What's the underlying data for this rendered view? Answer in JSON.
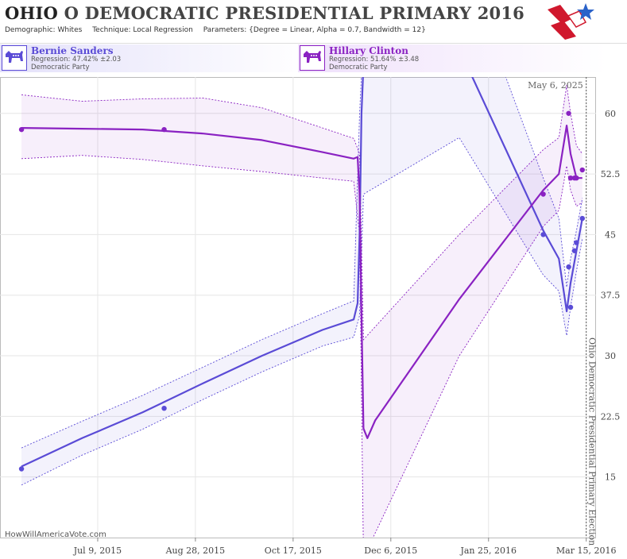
{
  "header": {
    "state": "OHIO",
    "title_rest": "O DEMOCRATIC PRESIDENTIAL PRIMARY 2016",
    "demographic_label": "Demographic:",
    "demographic": "Whites",
    "technique_label": "Technique:",
    "technique": "Local Regression",
    "parameters_label": "Parameters:",
    "parameters": "{Degree = Linear, Alpha = 0.7, Bandwidth = 12}"
  },
  "candidates": [
    {
      "name": "Bernie Sanders",
      "regression": "Regression: 47.42% ±2.03",
      "party": "Democratic Party",
      "color": "#5a4bd6",
      "icon": "donkey-icon"
    },
    {
      "name": "Hillary Clinton",
      "regression": "Regression: 51.64% ±3.48",
      "party": "Democratic Party",
      "color": "#8a22c2",
      "icon": "donkey-icon"
    }
  ],
  "footer": {
    "site": "HowWillAmericaVote.com"
  },
  "chart_data": {
    "type": "line",
    "x_axis": {
      "type": "date",
      "range": [
        "2015-05-20",
        "2016-03-20"
      ],
      "tick_labels": [
        "Jul 9, 2015",
        "Aug 28, 2015",
        "Oct 17, 2015",
        "Dec 6, 2015",
        "Jan 25, 2016",
        "Mar 15, 2016"
      ],
      "ticks": [
        "2015-07-09",
        "2015-08-28",
        "2015-10-17",
        "2015-12-06",
        "2016-01-25",
        "2016-03-15"
      ]
    },
    "y_axis": {
      "range": [
        7.5,
        64.5
      ],
      "ticks": [
        15,
        22.5,
        30,
        37.5,
        45,
        52.5,
        60
      ],
      "tick_labels": [
        "15",
        "22.5",
        "30",
        "37.5",
        "45",
        "52.5",
        "60"
      ],
      "position": "right"
    },
    "grid": true,
    "annotations": [
      {
        "label": "May 6, 2025",
        "position": "top-right"
      },
      {
        "label": "Ohio Democratic Presidential Primary Election",
        "date": "2016-03-15",
        "orientation": "vertical"
      }
    ],
    "series": [
      {
        "name": "Bernie Sanders",
        "color": "#5a4bd6",
        "points": [
          [
            "2015-05-31",
            16
          ],
          [
            "2015-08-12",
            23.5
          ],
          [
            "2016-02-22",
            45
          ],
          [
            "2016-03-06",
            41
          ],
          [
            "2016-03-07",
            36
          ],
          [
            "2016-03-09",
            43
          ],
          [
            "2016-03-10",
            44
          ],
          [
            "2016-03-13",
            47
          ]
        ],
        "fit": [
          [
            "2015-05-31",
            16.3
          ],
          [
            "2015-07-01",
            19.8
          ],
          [
            "2015-08-01",
            23.0
          ],
          [
            "2015-09-01",
            26.6
          ],
          [
            "2015-10-01",
            30.0
          ],
          [
            "2015-11-01",
            33.2
          ],
          [
            "2015-11-17",
            34.5
          ],
          [
            "2015-11-19",
            36.5
          ],
          [
            "2015-11-20",
            45
          ],
          [
            "2015-11-21",
            60
          ],
          [
            "2015-11-22",
            66
          ],
          [
            "2015-12-06",
            90
          ],
          [
            "2016-01-10",
            68
          ],
          [
            "2016-02-22",
            45.5
          ],
          [
            "2016-03-01",
            42
          ],
          [
            "2016-03-05",
            35.5
          ],
          [
            "2016-03-07",
            39
          ],
          [
            "2016-03-10",
            43
          ],
          [
            "2016-03-13",
            47
          ]
        ],
        "upper": [
          [
            "2015-05-31",
            18.6
          ],
          [
            "2015-07-01",
            21.9
          ],
          [
            "2015-08-01",
            25.1
          ],
          [
            "2015-09-01",
            28.6
          ],
          [
            "2015-10-01",
            32.0
          ],
          [
            "2015-11-01",
            35.2
          ],
          [
            "2015-11-17",
            36.8
          ],
          [
            "2015-11-20",
            60
          ],
          [
            "2015-11-22",
            70
          ],
          [
            "2016-01-10",
            80
          ],
          [
            "2016-02-22",
            52
          ],
          [
            "2016-03-01",
            47
          ],
          [
            "2016-03-05",
            38.5
          ],
          [
            "2016-03-07",
            42
          ],
          [
            "2016-03-10",
            45.5
          ],
          [
            "2016-03-13",
            49.5
          ]
        ],
        "lower": [
          [
            "2015-05-31",
            14.0
          ],
          [
            "2015-07-01",
            17.7
          ],
          [
            "2015-08-01",
            20.9
          ],
          [
            "2015-09-01",
            24.6
          ],
          [
            "2015-10-01",
            28.0
          ],
          [
            "2015-11-01",
            31.2
          ],
          [
            "2015-11-17",
            32.3
          ],
          [
            "2015-11-20",
            35
          ],
          [
            "2015-11-22",
            50
          ],
          [
            "2016-01-10",
            57
          ],
          [
            "2016-02-22",
            40
          ],
          [
            "2016-03-01",
            38
          ],
          [
            "2016-03-05",
            32.5
          ],
          [
            "2016-03-07",
            36
          ],
          [
            "2016-03-10",
            40.5
          ],
          [
            "2016-03-13",
            44.5
          ]
        ]
      },
      {
        "name": "Hillary Clinton",
        "color": "#8a22c2",
        "points": [
          [
            "2015-05-31",
            58
          ],
          [
            "2015-08-12",
            58
          ],
          [
            "2016-02-22",
            50
          ],
          [
            "2016-03-06",
            60
          ],
          [
            "2016-03-07",
            52
          ],
          [
            "2016-03-09",
            52
          ],
          [
            "2016-03-10",
            52
          ],
          [
            "2016-03-13",
            53
          ]
        ],
        "fit": [
          [
            "2015-05-31",
            58.2
          ],
          [
            "2015-07-01",
            58.1
          ],
          [
            "2015-08-01",
            58.0
          ],
          [
            "2015-09-01",
            57.5
          ],
          [
            "2015-10-01",
            56.7
          ],
          [
            "2015-11-01",
            55.2
          ],
          [
            "2015-11-17",
            54.4
          ],
          [
            "2015-11-19",
            54.6
          ],
          [
            "2015-11-20",
            50
          ],
          [
            "2015-11-21",
            35
          ],
          [
            "2015-11-22",
            21
          ],
          [
            "2015-11-24",
            19.8
          ],
          [
            "2015-11-28",
            22
          ],
          [
            "2016-01-10",
            37
          ],
          [
            "2016-02-22",
            50.5
          ],
          [
            "2016-03-01",
            52.5
          ],
          [
            "2016-03-05",
            58.5
          ],
          [
            "2016-03-07",
            55
          ],
          [
            "2016-03-10",
            52
          ],
          [
            "2016-03-13",
            52
          ]
        ],
        "upper": [
          [
            "2015-05-31",
            62.3
          ],
          [
            "2015-07-01",
            61.5
          ],
          [
            "2015-08-01",
            61.8
          ],
          [
            "2015-09-01",
            61.9
          ],
          [
            "2015-10-01",
            60.7
          ],
          [
            "2015-11-01",
            58.2
          ],
          [
            "2015-11-17",
            56.9
          ],
          [
            "2015-11-20",
            55
          ],
          [
            "2015-11-22",
            32
          ],
          [
            "2016-01-10",
            45
          ],
          [
            "2016-02-22",
            55.5
          ],
          [
            "2016-03-01",
            57
          ],
          [
            "2016-03-05",
            63.5
          ],
          [
            "2016-03-07",
            60
          ],
          [
            "2016-03-10",
            56
          ],
          [
            "2016-03-13",
            55
          ]
        ],
        "lower": [
          [
            "2015-05-31",
            54.4
          ],
          [
            "2015-07-01",
            54.8
          ],
          [
            "2015-08-01",
            54.3
          ],
          [
            "2015-09-01",
            53.5
          ],
          [
            "2015-10-01",
            52.8
          ],
          [
            "2015-11-01",
            52.0
          ],
          [
            "2015-11-17",
            51.6
          ],
          [
            "2015-11-20",
            45
          ],
          [
            "2015-11-22",
            5
          ],
          [
            "2016-01-10",
            30
          ],
          [
            "2016-02-22",
            46
          ],
          [
            "2016-03-01",
            48
          ],
          [
            "2016-03-05",
            53.5
          ],
          [
            "2016-03-07",
            50.5
          ],
          [
            "2016-03-10",
            48.5
          ],
          [
            "2016-03-13",
            49
          ]
        ]
      }
    ]
  }
}
